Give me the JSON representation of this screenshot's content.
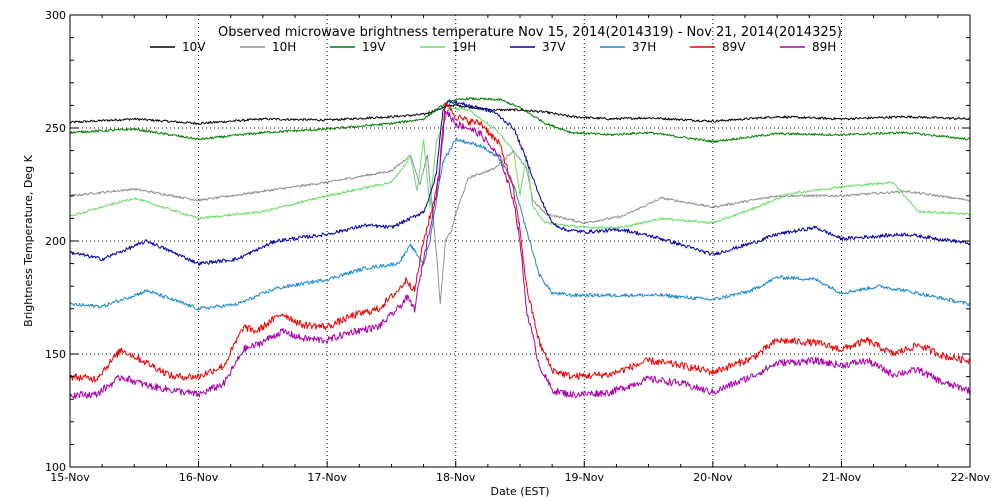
{
  "chart_data": {
    "type": "line",
    "title": "Observed microwave brightness temperature Nov 15, 2014(2014319) - Nov 21, 2014(2014325)",
    "xlabel": "Date (EST)",
    "ylabel": "Brightness Temperature, Deg K",
    "xlim": [
      0,
      7
    ],
    "ylim": [
      100,
      300
    ],
    "x_ticks": [
      {
        "x": 0,
        "label": "15-Nov"
      },
      {
        "x": 1,
        "label": "16-Nov"
      },
      {
        "x": 2,
        "label": "17-Nov"
      },
      {
        "x": 3,
        "label": "18-Nov"
      },
      {
        "x": 4,
        "label": "19-Nov"
      },
      {
        "x": 5,
        "label": "20-Nov"
      },
      {
        "x": 6,
        "label": "21-Nov"
      },
      {
        "x": 7,
        "label": "22-Nov"
      }
    ],
    "y_ticks": [
      {
        "y": 100,
        "label": "100"
      },
      {
        "y": 150,
        "label": "150"
      },
      {
        "y": 200,
        "label": "200"
      },
      {
        "y": 250,
        "label": "250"
      },
      {
        "y": 300,
        "label": "300"
      }
    ],
    "grid": true,
    "legend_position": "top",
    "series": [
      {
        "name": "10V",
        "color": "#000000",
        "points": [
          [
            0,
            252.5
          ],
          [
            0.5,
            254
          ],
          [
            1,
            252
          ],
          [
            1.5,
            254
          ],
          [
            2,
            253.5
          ],
          [
            2.5,
            255
          ],
          [
            2.75,
            256
          ],
          [
            2.85,
            258
          ],
          [
            2.95,
            260
          ],
          [
            3,
            260
          ],
          [
            3.3,
            258
          ],
          [
            3.5,
            258
          ],
          [
            3.7,
            257
          ],
          [
            3.9,
            255
          ],
          [
            4.2,
            254
          ],
          [
            4.5,
            254.5
          ],
          [
            5,
            253
          ],
          [
            5.5,
            255
          ],
          [
            6,
            254
          ],
          [
            6.5,
            255
          ],
          [
            7,
            254
          ]
        ]
      },
      {
        "name": "10H",
        "color": "#909090",
        "points": [
          [
            0,
            220
          ],
          [
            0.5,
            223
          ],
          [
            1,
            218
          ],
          [
            1.5,
            222
          ],
          [
            2,
            226
          ],
          [
            2.5,
            231
          ],
          [
            2.65,
            238
          ],
          [
            2.72,
            225
          ],
          [
            2.78,
            238
          ],
          [
            2.85,
            195
          ],
          [
            2.88,
            172
          ],
          [
            2.92,
            200
          ],
          [
            2.97,
            205
          ],
          [
            3,
            212
          ],
          [
            3.1,
            228
          ],
          [
            3.3,
            232
          ],
          [
            3.45,
            240
          ],
          [
            3.55,
            232
          ],
          [
            3.6,
            218
          ],
          [
            3.7,
            212
          ],
          [
            4,
            208
          ],
          [
            4.3,
            211
          ],
          [
            4.6,
            219
          ],
          [
            5,
            215
          ],
          [
            5.5,
            220
          ],
          [
            6,
            220
          ],
          [
            6.5,
            222
          ],
          [
            7,
            218
          ]
        ]
      },
      {
        "name": "19V",
        "color": "#008000",
        "points": [
          [
            0,
            248
          ],
          [
            0.5,
            249.5
          ],
          [
            1,
            245
          ],
          [
            1.5,
            248
          ],
          [
            2,
            249.5
          ],
          [
            2.5,
            252
          ],
          [
            2.75,
            254
          ],
          [
            2.85,
            258
          ],
          [
            2.95,
            262
          ],
          [
            3.1,
            263
          ],
          [
            3.35,
            262.5
          ],
          [
            3.5,
            259
          ],
          [
            3.7,
            252
          ],
          [
            3.9,
            248
          ],
          [
            4.2,
            247
          ],
          [
            4.5,
            248
          ],
          [
            5,
            244
          ],
          [
            5.5,
            247.5
          ],
          [
            6,
            247
          ],
          [
            6.5,
            248
          ],
          [
            7,
            245
          ]
        ]
      },
      {
        "name": "19H",
        "color": "#66dd66",
        "points": [
          [
            0,
            211
          ],
          [
            0.5,
            219
          ],
          [
            1,
            210
          ],
          [
            1.5,
            213
          ],
          [
            2,
            220
          ],
          [
            2.5,
            226
          ],
          [
            2.65,
            237
          ],
          [
            2.7,
            222
          ],
          [
            2.75,
            245
          ],
          [
            2.8,
            215
          ],
          [
            2.85,
            244
          ],
          [
            2.95,
            259
          ],
          [
            3.1,
            258
          ],
          [
            3.3,
            250
          ],
          [
            3.45,
            240
          ],
          [
            3.5,
            220
          ],
          [
            3.55,
            238
          ],
          [
            3.6,
            215
          ],
          [
            3.7,
            208
          ],
          [
            4,
            206
          ],
          [
            4.3,
            206
          ],
          [
            4.6,
            210
          ],
          [
            5,
            208
          ],
          [
            5.3,
            214
          ],
          [
            5.6,
            221
          ],
          [
            6,
            224
          ],
          [
            6.4,
            226
          ],
          [
            6.6,
            213
          ],
          [
            7,
            212
          ]
        ]
      },
      {
        "name": "37V",
        "color": "#0000aa",
        "points": [
          [
            0,
            195
          ],
          [
            0.25,
            192
          ],
          [
            0.6,
            200
          ],
          [
            1,
            190
          ],
          [
            1.3,
            192
          ],
          [
            1.6,
            200
          ],
          [
            2,
            203
          ],
          [
            2.3,
            207
          ],
          [
            2.5,
            206
          ],
          [
            2.65,
            210
          ],
          [
            2.75,
            213
          ],
          [
            2.8,
            220
          ],
          [
            2.85,
            230
          ],
          [
            2.9,
            258
          ],
          [
            2.95,
            262
          ],
          [
            3.1,
            260
          ],
          [
            3.3,
            257
          ],
          [
            3.45,
            250
          ],
          [
            3.55,
            236
          ],
          [
            3.65,
            220
          ],
          [
            3.75,
            208
          ],
          [
            3.85,
            205
          ],
          [
            4,
            204
          ],
          [
            4.3,
            205
          ],
          [
            4.6,
            201
          ],
          [
            5,
            194
          ],
          [
            5.3,
            199
          ],
          [
            5.5,
            203
          ],
          [
            5.8,
            206
          ],
          [
            6,
            201
          ],
          [
            6.5,
            203
          ],
          [
            7,
            199
          ]
        ]
      },
      {
        "name": "37H",
        "color": "#1a88d0",
        "points": [
          [
            0,
            172
          ],
          [
            0.25,
            171
          ],
          [
            0.6,
            178
          ],
          [
            1,
            170
          ],
          [
            1.3,
            172
          ],
          [
            1.6,
            179
          ],
          [
            2,
            183
          ],
          [
            2.3,
            188
          ],
          [
            2.55,
            190
          ],
          [
            2.65,
            198
          ],
          [
            2.75,
            190
          ],
          [
            2.8,
            200
          ],
          [
            2.85,
            218
          ],
          [
            2.9,
            235
          ],
          [
            3,
            245
          ],
          [
            3.2,
            242
          ],
          [
            3.35,
            236
          ],
          [
            3.45,
            225
          ],
          [
            3.55,
            205
          ],
          [
            3.65,
            185
          ],
          [
            3.75,
            177
          ],
          [
            3.9,
            176
          ],
          [
            4.2,
            176
          ],
          [
            4.6,
            176
          ],
          [
            5,
            174
          ],
          [
            5.3,
            178
          ],
          [
            5.5,
            184
          ],
          [
            5.8,
            183
          ],
          [
            6,
            177
          ],
          [
            6.3,
            180
          ],
          [
            6.5,
            178
          ],
          [
            7,
            172
          ]
        ]
      },
      {
        "name": "89V",
        "color": "#ee0000",
        "points": [
          [
            0,
            140
          ],
          [
            0.2,
            139
          ],
          [
            0.4,
            152
          ],
          [
            0.6,
            146
          ],
          [
            0.8,
            140
          ],
          [
            1,
            140
          ],
          [
            1.2,
            145
          ],
          [
            1.35,
            162
          ],
          [
            1.45,
            160
          ],
          [
            1.65,
            168
          ],
          [
            1.8,
            163
          ],
          [
            2,
            162
          ],
          [
            2.2,
            167
          ],
          [
            2.4,
            170
          ],
          [
            2.55,
            178
          ],
          [
            2.62,
            183
          ],
          [
            2.68,
            178
          ],
          [
            2.75,
            200
          ],
          [
            2.82,
            215
          ],
          [
            2.87,
            230
          ],
          [
            2.92,
            262
          ],
          [
            3,
            255
          ],
          [
            3.1,
            253
          ],
          [
            3.2,
            252
          ],
          [
            3.35,
            242
          ],
          [
            3.45,
            222
          ],
          [
            3.5,
            205
          ],
          [
            3.55,
            180
          ],
          [
            3.65,
            155
          ],
          [
            3.75,
            143
          ],
          [
            3.9,
            140
          ],
          [
            4.2,
            141
          ],
          [
            4.5,
            147
          ],
          [
            4.75,
            145
          ],
          [
            5,
            142
          ],
          [
            5.3,
            148
          ],
          [
            5.5,
            156
          ],
          [
            5.8,
            155
          ],
          [
            6,
            152
          ],
          [
            6.2,
            156
          ],
          [
            6.4,
            150
          ],
          [
            6.6,
            154
          ],
          [
            6.8,
            149
          ],
          [
            7,
            147
          ]
        ]
      },
      {
        "name": "89H",
        "color": "#aa00aa",
        "points": [
          [
            0,
            132
          ],
          [
            0.2,
            132
          ],
          [
            0.4,
            140
          ],
          [
            0.6,
            136
          ],
          [
            0.8,
            134
          ],
          [
            1,
            132
          ],
          [
            1.2,
            137
          ],
          [
            1.35,
            152
          ],
          [
            1.45,
            154
          ],
          [
            1.65,
            160
          ],
          [
            1.8,
            157
          ],
          [
            2,
            156
          ],
          [
            2.2,
            160
          ],
          [
            2.4,
            162
          ],
          [
            2.55,
            170
          ],
          [
            2.62,
            175
          ],
          [
            2.68,
            170
          ],
          [
            2.75,
            192
          ],
          [
            2.82,
            212
          ],
          [
            2.87,
            228
          ],
          [
            2.92,
            258
          ],
          [
            3,
            252
          ],
          [
            3.1,
            250
          ],
          [
            3.2,
            247
          ],
          [
            3.35,
            236
          ],
          [
            3.45,
            218
          ],
          [
            3.5,
            200
          ],
          [
            3.55,
            170
          ],
          [
            3.65,
            145
          ],
          [
            3.75,
            134
          ],
          [
            3.9,
            132
          ],
          [
            4.2,
            133
          ],
          [
            4.5,
            139
          ],
          [
            4.75,
            137
          ],
          [
            5,
            133
          ],
          [
            5.3,
            140
          ],
          [
            5.5,
            146
          ],
          [
            5.8,
            147
          ],
          [
            6,
            145
          ],
          [
            6.2,
            147
          ],
          [
            6.4,
            141
          ],
          [
            6.6,
            143
          ],
          [
            6.8,
            137
          ],
          [
            7,
            134
          ]
        ]
      }
    ]
  }
}
